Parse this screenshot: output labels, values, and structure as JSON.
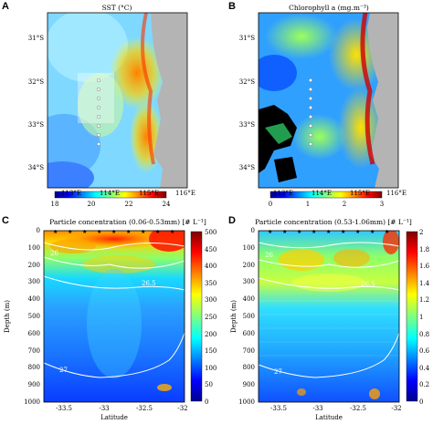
{
  "panels": {
    "a": {
      "letter": "A",
      "title": "SST (°C)",
      "lat_labels": [
        "31°S",
        "32°S",
        "33°S",
        "34°S"
      ],
      "lon_labels": [
        "113°E",
        "114°E",
        "115°E",
        "116°E"
      ],
      "colorbar_ticks": [
        "18",
        "20",
        "22",
        "24"
      ]
    },
    "b": {
      "letter": "B",
      "title": "Chlorophyll a (mg.m⁻³)",
      "lat_labels": [
        "31°S",
        "32°S",
        "33°S",
        "34°S"
      ],
      "lon_labels": [
        "113°E",
        "114°E",
        "115°E",
        "116°E"
      ],
      "colorbar_ticks": [
        "0",
        "1",
        "2",
        "3"
      ]
    },
    "c": {
      "letter": "C",
      "title": "Particle concentration (0.06-0.53mm) [# L⁻¹]",
      "ylabel": "Depth (m)",
      "xlabel": "Latitude",
      "x_ticks": [
        "-33.5",
        "-33",
        "-32.5",
        "-32"
      ],
      "y_ticks": [
        "0",
        "100",
        "200",
        "300",
        "400",
        "500",
        "600",
        "700",
        "800",
        "900",
        "1000"
      ],
      "colorbar_ticks": [
        "500",
        "450",
        "400",
        "350",
        "300",
        "250",
        "200",
        "150",
        "100",
        "50",
        "0"
      ],
      "contour_labels": [
        "26",
        "26.5",
        "27"
      ]
    },
    "d": {
      "letter": "D",
      "title": "Particle concentration (0.53-1.06mm) [# L⁻¹]",
      "ylabel": "Depth (m)",
      "xlabel": "Latitude",
      "x_ticks": [
        "-33.5",
        "-33",
        "-32.5",
        "-32"
      ],
      "y_ticks": [
        "0",
        "100",
        "200",
        "300",
        "400",
        "500",
        "600",
        "700",
        "800",
        "900",
        "1000"
      ],
      "colorbar_ticks": [
        "2",
        "1.8",
        "1.6",
        "1.4",
        "1.2",
        "1",
        "0.8",
        "0.6",
        "0.4",
        "0.2",
        "0"
      ],
      "contour_labels": [
        "26",
        "26.5",
        "27"
      ]
    }
  },
  "colors": {
    "land": "#b4b4b4",
    "stations": "#ffffff",
    "contours": "#ffffff",
    "no_data_chl": "#000000"
  }
}
